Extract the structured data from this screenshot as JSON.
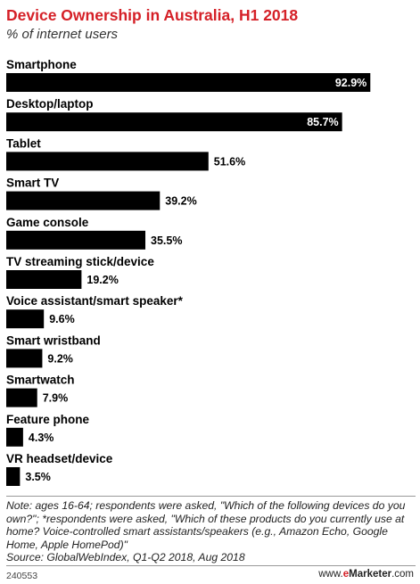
{
  "chart_data": {
    "type": "bar",
    "orientation": "horizontal",
    "title": "Device Ownership in Australia, H1 2018",
    "subtitle": "% of internet users",
    "categories": [
      "Smartphone",
      "Desktop/laptop",
      "Tablet",
      "Smart TV",
      "Game console",
      "TV streaming stick/device",
      "Voice assistant/smart speaker*",
      "Smart wristband",
      "Smartwatch",
      "Feature phone",
      "VR headset/device"
    ],
    "values": [
      92.9,
      85.7,
      51.6,
      39.2,
      35.5,
      19.2,
      9.6,
      9.2,
      7.9,
      4.3,
      3.5
    ],
    "value_labels": [
      "92.9%",
      "85.7%",
      "51.6%",
      "39.2%",
      "35.5%",
      "19.2%",
      "9.6%",
      "9.2%",
      "7.9%",
      "4.3%",
      "3.5%"
    ],
    "xlim": [
      0,
      100
    ],
    "bar_color": "#000000",
    "grid": false,
    "legend": "none"
  },
  "note": "Note: ages 16-64; respondents were asked, \"Which of the following devices do you own?\"; *respondents were asked, \"Which of these products do you currently use at home? Voice-controlled smart assistants/speakers (e.g., Amazon Echo, Google Home, Apple HomePod)\"",
  "source": "Source: GlobalWebIndex, Q1-Q2 2018, Aug 2018",
  "footer": {
    "chart_id": "240553",
    "site_prefix": "www.",
    "site_e": "e",
    "site_name": "Marketer",
    "site_suffix": ".com"
  },
  "colors": {
    "title": "#d52027",
    "bars": "#000000",
    "inside_label": "#ffffff"
  }
}
